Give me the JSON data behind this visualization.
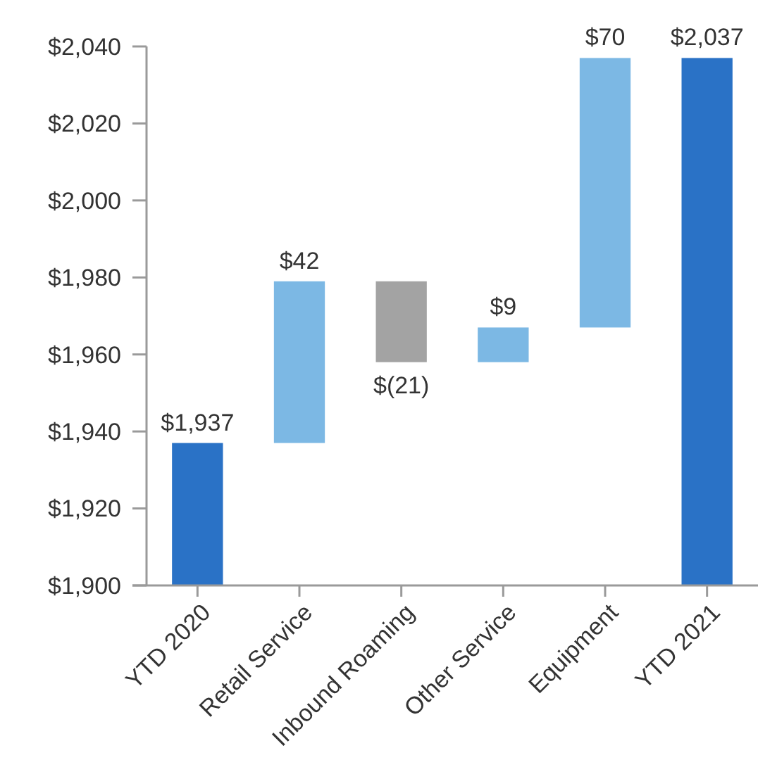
{
  "chart_data": {
    "type": "bar",
    "categories": [
      "YTD 2020",
      "Retail Service",
      "Inbound Roaming",
      "Other Service",
      "Equipment",
      "YTD 2021"
    ],
    "values": [
      1937,
      42,
      -21,
      9,
      70,
      2037
    ],
    "base": [
      null,
      1937,
      1979,
      1958,
      1967,
      null
    ],
    "colors": [
      "#2a72c6",
      "#7cb8e4",
      "#a3a3a3",
      "#7cb8e4",
      "#7cb8e4",
      "#2a72c6"
    ],
    "value_labels": [
      "$1,937",
      "$42",
      "$(21)",
      "$9",
      "$70",
      "$2,037"
    ],
    "ylim": [
      1900,
      2040
    ],
    "yticks": [
      {
        "value": 1900,
        "label": "$1,900"
      },
      {
        "value": 1920,
        "label": "$1,920"
      },
      {
        "value": 1940,
        "label": "$1,940"
      },
      {
        "value": 1960,
        "label": "$1,960"
      },
      {
        "value": 1980,
        "label": "$1,980"
      },
      {
        "value": 2000,
        "label": "$2,000"
      },
      {
        "value": 2020,
        "label": "$2,020"
      },
      {
        "value": 2040,
        "label": "$2,040"
      }
    ]
  }
}
